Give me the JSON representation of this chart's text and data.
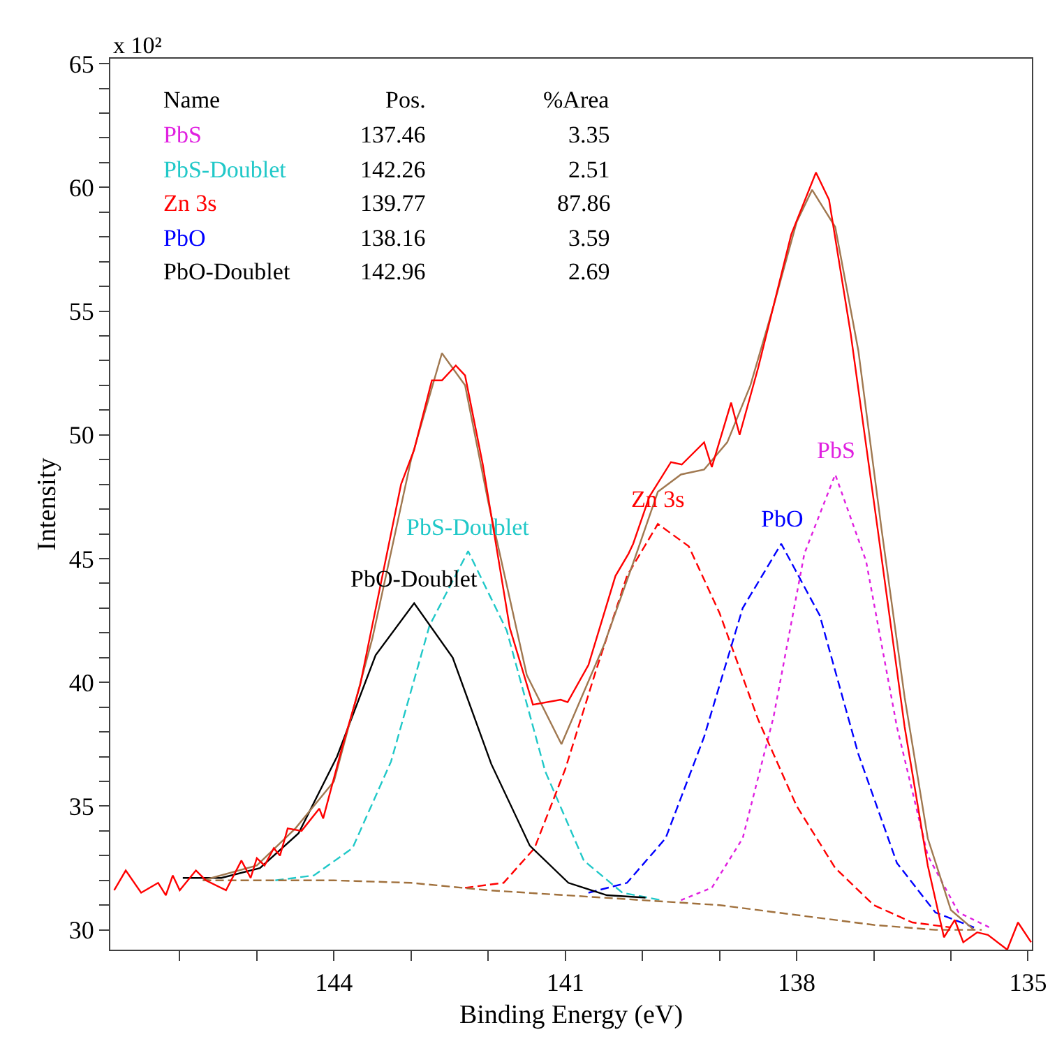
{
  "chart_data": {
    "type": "line",
    "xlabel": "Binding Energy (eV)",
    "ylabel": "Intensity",
    "annotations": [
      "x 10²",
      "Name",
      "Pos.",
      "%Area",
      "PbS",
      "137.46",
      "3.35",
      "PbS-Doublet",
      "142.26",
      "2.51",
      "Zn 3s",
      "139.77",
      "87.86",
      "PbO",
      "138.16",
      "3.59",
      "PbO-Doublet",
      "142.96",
      "2.69"
    ],
    "xlim": [
      146.9,
      134.95
    ],
    "ylim": [
      29.2,
      65.2
    ],
    "xticks": [
      {
        "value": 146,
        "label": null
      },
      {
        "value": 145,
        "label": null
      },
      144,
      {
        "value": 143,
        "label": null
      },
      {
        "value": 142,
        "label": null
      },
      141,
      {
        "value": 140,
        "label": null
      },
      {
        "value": 139,
        "label": null
      },
      138,
      {
        "value": 137,
        "label": null
      },
      {
        "value": 136,
        "label": null
      },
      135
    ],
    "yticks": [
      30,
      {
        "value": 31,
        "label": null
      },
      {
        "value": 32,
        "label": null
      },
      {
        "value": 33,
        "label": null
      },
      {
        "value": 34,
        "label": null
      },
      35,
      {
        "value": 36,
        "label": null
      },
      {
        "value": 37,
        "label": null
      },
      {
        "value": 38,
        "label": null
      },
      {
        "value": 39,
        "label": null
      },
      40,
      {
        "value": 41,
        "label": null
      },
      {
        "value": 42,
        "label": null
      },
      {
        "value": 43,
        "label": null
      },
      {
        "value": 44,
        "label": null
      },
      45,
      {
        "value": 46,
        "label": null
      },
      {
        "value": 47,
        "label": null
      },
      {
        "value": 48,
        "label": null
      },
      {
        "value": 49,
        "label": null
      },
      50,
      {
        "value": 51,
        "label": null
      },
      {
        "value": 52,
        "label": null
      },
      {
        "value": 53,
        "label": null
      },
      {
        "value": 54,
        "label": null
      },
      55,
      {
        "value": 56,
        "label": null
      },
      {
        "value": 57,
        "label": null
      },
      {
        "value": 58,
        "label": null
      },
      {
        "value": 59,
        "label": null
      },
      60,
      {
        "value": 61,
        "label": null
      },
      {
        "value": 62,
        "label": null
      },
      {
        "value": 63,
        "label": null
      },
      {
        "value": 64,
        "label": null
      },
      65
    ],
    "legend": false,
    "marker": "none",
    "series": [
      {
        "name": "PbS",
        "color": "#e020e0",
        "line_style": "dotted",
        "x": [
          139.5,
          139.1,
          138.7,
          138.3,
          137.9,
          137.5,
          137.1,
          136.7,
          136.3,
          135.9,
          135.5
        ],
        "values": [
          31.2,
          31.7,
          33.7,
          38.6,
          45.2,
          48.4,
          44.9,
          38.2,
          33.0,
          30.7,
          30.1
        ]
      },
      {
        "name": "PbS-Doublet",
        "color": "#20c8c8",
        "line_style": "dashed",
        "x": [
          144.76,
          144.26,
          143.76,
          143.26,
          142.76,
          142.26,
          141.76,
          141.26,
          140.76,
          140.26,
          139.76
        ],
        "values": [
          32.0,
          32.2,
          33.3,
          36.8,
          42.3,
          45.3,
          42.1,
          36.4,
          32.8,
          31.5,
          31.2
        ]
      },
      {
        "name": "Zn 3s",
        "color": "#ff0000",
        "line_style": "dashed",
        "x": [
          142.3,
          141.8,
          141.4,
          141.0,
          140.6,
          140.2,
          139.8,
          139.4,
          139.0,
          138.5,
          138.0,
          137.5,
          137.0,
          136.5,
          136.0
        ],
        "values": [
          31.7,
          31.9,
          33.3,
          36.5,
          40.5,
          44.3,
          46.4,
          45.5,
          42.8,
          38.5,
          35.0,
          32.5,
          31.0,
          30.3,
          30.1
        ]
      },
      {
        "name": "PbO",
        "color": "#0000ff",
        "line_style": "dashed",
        "x": [
          140.7,
          140.2,
          139.7,
          139.2,
          138.7,
          138.2,
          137.7,
          137.2,
          136.7,
          136.2,
          135.7
        ],
        "values": [
          31.5,
          31.9,
          33.7,
          37.8,
          43.0,
          45.6,
          42.7,
          37.1,
          32.7,
          30.7,
          30.1
        ]
      },
      {
        "name": "PbO-Doublet",
        "color": "#000000",
        "line_style": "solid",
        "x": [
          145.96,
          145.46,
          144.96,
          144.46,
          143.96,
          143.46,
          142.96,
          142.46,
          141.96,
          141.46,
          140.96,
          140.46,
          139.96
        ],
        "values": [
          32.1,
          32.1,
          32.5,
          33.9,
          37.0,
          41.1,
          43.2,
          41.0,
          36.7,
          33.4,
          31.9,
          31.4,
          31.3
        ]
      },
      {
        "color": "#a0703c",
        "line_style": "dashed",
        "x": [
          145.7,
          144.0,
          143.0,
          142.0,
          141.0,
          140.0,
          139.0,
          138.0,
          137.0,
          136.2,
          135.6
        ],
        "values": [
          32.0,
          32.0,
          31.9,
          31.6,
          31.4,
          31.2,
          31.0,
          30.6,
          30.2,
          30.0,
          30.0
        ]
      },
      {
        "color": "#a07850",
        "line_style": "solid",
        "x": [
          145.7,
          145.0,
          144.5,
          144.0,
          143.5,
          143.0,
          142.6,
          142.3,
          142.0,
          141.5,
          141.05,
          140.5,
          140.1,
          139.8,
          139.5,
          139.2,
          138.9,
          138.6,
          138.3,
          138.0,
          137.8,
          137.5,
          137.2,
          136.9,
          136.6,
          136.3,
          136.0,
          135.7
        ],
        "values": [
          32.0,
          32.6,
          34.1,
          36.0,
          41.8,
          49.0,
          53.3,
          52.0,
          47.3,
          40.3,
          37.5,
          41.5,
          45.0,
          47.7,
          48.4,
          48.6,
          49.7,
          52.0,
          55.2,
          58.6,
          59.9,
          58.4,
          53.4,
          46.2,
          39.4,
          33.7,
          30.8,
          30.0
        ]
      },
      {
        "color": "#ff0000",
        "line_style": "solid",
        "x": [
          146.85,
          146.7,
          146.5,
          146.28,
          146.18,
          146.09,
          146.0,
          145.79,
          145.66,
          145.4,
          145.2,
          145.08,
          145.0,
          144.9,
          144.78,
          144.7,
          144.6,
          144.42,
          144.19,
          144.14,
          143.9,
          143.66,
          143.13,
          142.96,
          142.73,
          142.6,
          142.42,
          142.3,
          142.07,
          141.9,
          141.72,
          141.42,
          141.06,
          140.97,
          140.7,
          140.35,
          140.18,
          140.12,
          139.91,
          139.63,
          139.49,
          139.2,
          139.1,
          138.85,
          138.74,
          138.5,
          138.07,
          137.75,
          137.58,
          137.3,
          136.95,
          136.6,
          136.3,
          136.09,
          135.95,
          135.84,
          135.66,
          135.52,
          135.27,
          135.13,
          134.96
        ],
        "values": [
          31.6,
          32.4,
          31.5,
          31.9,
          31.4,
          32.2,
          31.6,
          32.4,
          32.0,
          31.6,
          32.8,
          32.1,
          32.9,
          32.6,
          33.3,
          33.0,
          34.1,
          34.0,
          34.9,
          34.5,
          37.3,
          39.9,
          48.0,
          49.4,
          52.2,
          52.2,
          52.8,
          52.4,
          48.8,
          45.6,
          42.2,
          39.1,
          39.3,
          39.2,
          40.7,
          44.3,
          45.2,
          45.6,
          47.5,
          48.9,
          48.8,
          49.7,
          48.7,
          51.3,
          50.0,
          52.7,
          58.1,
          60.6,
          59.5,
          54.1,
          46.2,
          38.2,
          32.6,
          29.7,
          30.4,
          29.5,
          29.9,
          29.8,
          29.2,
          30.3,
          29.5
        ]
      }
    ]
  }
}
